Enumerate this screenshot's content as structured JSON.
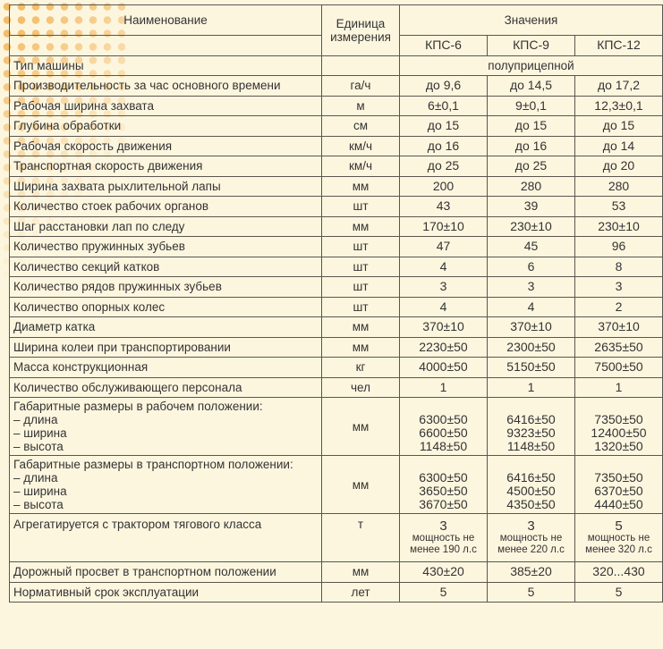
{
  "header": {
    "name": "Наименование",
    "unit": "Единица измерения",
    "values": "Значения",
    "models": [
      "КПС-6",
      "КПС-9",
      "КПС-12"
    ]
  },
  "rows": [
    {
      "name": "Тип машины",
      "unit": "",
      "merged": "полуприцепной"
    },
    {
      "name": "Производительность за час основного времени",
      "unit": "га/ч",
      "v": [
        "до 9,6",
        "до 14,5",
        "до 17,2"
      ]
    },
    {
      "name": "Рабочая ширина захвата",
      "unit": "м",
      "v": [
        "6±0,1",
        "9±0,1",
        "12,3±0,1"
      ]
    },
    {
      "name": "Глубина обработки",
      "unit": "см",
      "v": [
        "до 15",
        "до 15",
        "до 15"
      ]
    },
    {
      "name": "Рабочая скорость движения",
      "unit": "км/ч",
      "v": [
        "до 16",
        "до 16",
        "до 14"
      ]
    },
    {
      "name": "Транспортная скорость движения",
      "unit": "км/ч",
      "v": [
        "до 25",
        "до 25",
        "до 20"
      ]
    },
    {
      "name": "Ширина захвата рыхлительной лапы",
      "unit": "мм",
      "v": [
        "200",
        "280",
        "280"
      ]
    },
    {
      "name": "Количество стоек рабочих органов",
      "unit": "шт",
      "v": [
        "43",
        "39",
        "53"
      ]
    },
    {
      "name": "Шаг расстановки лап по следу",
      "unit": "мм",
      "v": [
        "170±10",
        "230±10",
        "230±10"
      ]
    },
    {
      "name": "Количество пружинных зубьев",
      "unit": "шт",
      "v": [
        "47",
        "45",
        "96"
      ]
    },
    {
      "name": "Количество секций катков",
      "unit": "шт",
      "v": [
        "4",
        "6",
        "8"
      ]
    },
    {
      "name": "Количество рядов пружинных зубьев",
      "unit": "шт",
      "v": [
        "3",
        "3",
        "3"
      ]
    },
    {
      "name": "Количество опорных колес",
      "unit": "шт",
      "v": [
        "4",
        "4",
        "2"
      ]
    },
    {
      "name": "Диаметр катка",
      "unit": "мм",
      "v": [
        "370±10",
        "370±10",
        "370±10"
      ]
    },
    {
      "name": "Ширина колеи при транспортировании",
      "unit": "мм",
      "v": [
        "2230±50",
        "2300±50",
        "2635±50"
      ]
    },
    {
      "name": "Масса конструкционная",
      "unit": "кг",
      "v": [
        "4000±50",
        "5150±50",
        "7500±50"
      ]
    },
    {
      "name": "Количество обслуживающего персонала",
      "unit": "чел",
      "v": [
        "1",
        "1",
        "1"
      ]
    }
  ],
  "work_dims": {
    "name": [
      "Габаритные размеры в рабочем положении:",
      "– длина",
      "– ширина",
      "– высота"
    ],
    "unit": "мм",
    "v": [
      [
        "6300±50",
        "6600±50",
        "1148±50"
      ],
      [
        "6416±50",
        "9323±50",
        "1148±50"
      ],
      [
        "7350±50",
        "12400±50",
        "1320±50"
      ]
    ]
  },
  "trans_dims": {
    "name": [
      "Габаритные размеры в транспортном положении:",
      "– длина",
      "– ширина",
      "– высота"
    ],
    "unit": "мм",
    "v": [
      [
        "6300±50",
        "3650±50",
        "3670±50"
      ],
      [
        "6416±50",
        "4500±50",
        "4350±50"
      ],
      [
        "7350±50",
        "6370±50",
        "4440±50"
      ]
    ]
  },
  "tractor": {
    "name": "Агрегатируется с трактором тягового класса",
    "unit": "т",
    "v": [
      [
        "3",
        "мощность не менее 190 л.с"
      ],
      [
        "3",
        "мощность не менее 220 л.с"
      ],
      [
        "5",
        "мощность не менее 320 л.с"
      ]
    ]
  },
  "tail": [
    {
      "name": "Дорожный просвет в транспортном положении",
      "unit": "мм",
      "v": [
        "430±20",
        "385±20",
        "320...430"
      ]
    },
    {
      "name": "Нормативный срок эксплуатации",
      "unit": "лет",
      "v": [
        "5",
        "5",
        "5"
      ]
    }
  ]
}
